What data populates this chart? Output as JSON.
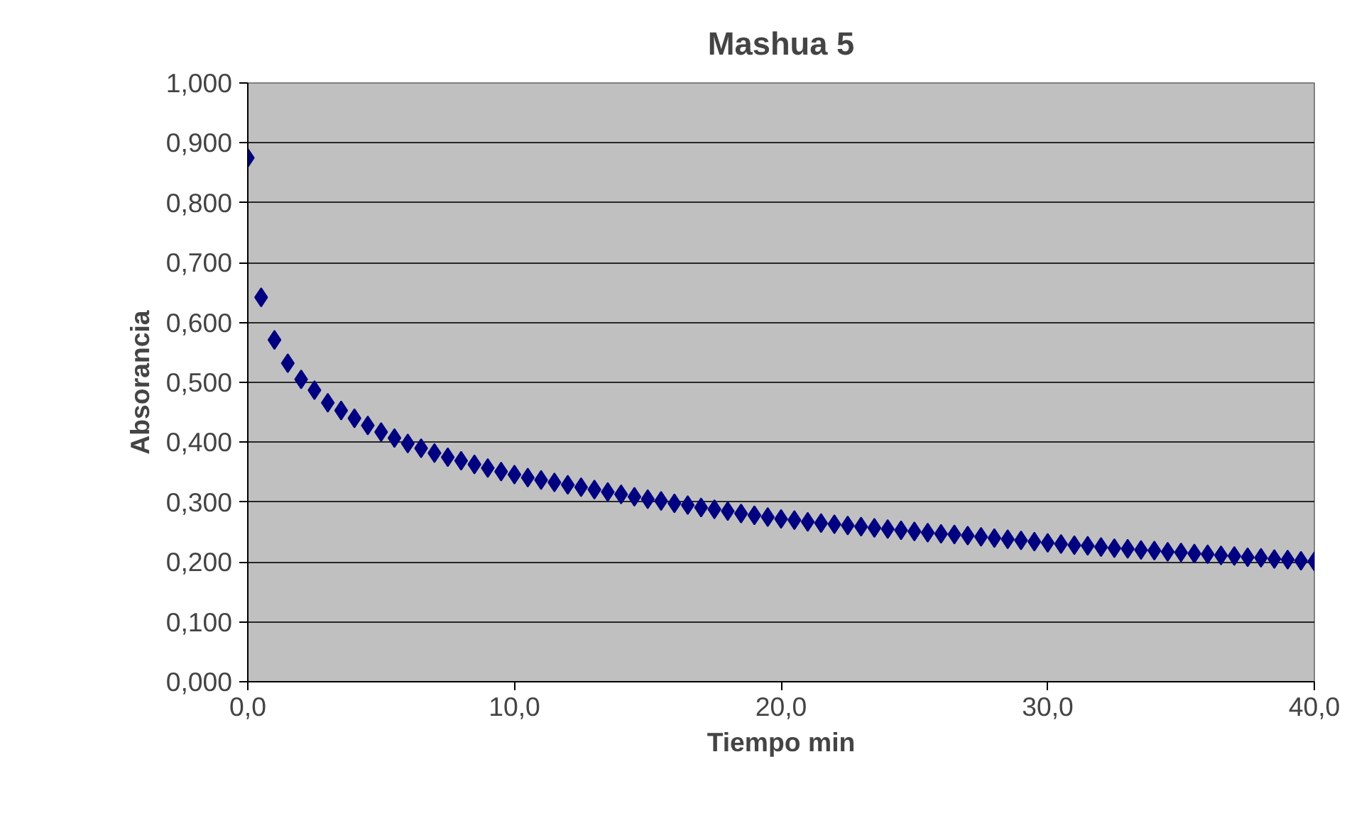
{
  "chart_data": {
    "type": "scatter",
    "title": "Mashua 5",
    "xlabel": "Tiempo min",
    "ylabel": "Absorancia",
    "x": [
      0,
      0.5,
      1,
      1.5,
      2,
      2.5,
      3,
      3.5,
      4,
      4.5,
      5,
      5.5,
      6,
      6.5,
      7,
      7.5,
      8,
      8.5,
      9,
      9.5,
      10,
      10.5,
      11,
      11.5,
      12,
      12.5,
      13,
      13.5,
      14,
      14.5,
      15,
      15.5,
      16,
      16.5,
      17,
      17.5,
      18,
      18.5,
      19,
      19.5,
      20,
      20.5,
      21,
      21.5,
      22,
      22.5,
      23,
      23.5,
      24,
      24.5,
      25,
      25.5,
      26,
      26.5,
      27,
      27.5,
      28,
      28.5,
      29,
      29.5,
      30,
      30.5,
      31,
      31.5,
      32,
      32.5,
      33,
      33.5,
      34,
      34.5,
      35,
      35.5,
      36,
      36.5,
      37,
      37.5,
      38,
      38.5,
      39,
      39.5,
      40
    ],
    "series": [
      {
        "color": "#000080",
        "values": [
          0.875,
          0.642,
          0.571,
          0.532,
          0.505,
          0.487,
          0.466,
          0.453,
          0.44,
          0.428,
          0.417,
          0.407,
          0.398,
          0.39,
          0.382,
          0.375,
          0.369,
          0.363,
          0.357,
          0.351,
          0.346,
          0.341,
          0.337,
          0.333,
          0.329,
          0.325,
          0.321,
          0.317,
          0.313,
          0.309,
          0.305,
          0.302,
          0.298,
          0.295,
          0.291,
          0.288,
          0.285,
          0.281,
          0.278,
          0.275,
          0.272,
          0.27,
          0.267,
          0.265,
          0.263,
          0.261,
          0.259,
          0.257,
          0.255,
          0.253,
          0.251,
          0.249,
          0.247,
          0.246,
          0.244,
          0.242,
          0.24,
          0.238,
          0.236,
          0.234,
          0.232,
          0.23,
          0.228,
          0.227,
          0.225,
          0.223,
          0.222,
          0.22,
          0.219,
          0.217,
          0.216,
          0.214,
          0.213,
          0.211,
          0.21,
          0.208,
          0.207,
          0.205,
          0.204,
          0.202,
          0.201
        ]
      }
    ],
    "marker": "diamond",
    "grid": "y",
    "xlim": [
      0,
      40
    ],
    "xticks": [
      {
        "value": 0,
        "label": "0,0"
      },
      {
        "value": 10,
        "label": "10,0"
      },
      {
        "value": 20,
        "label": "20,0"
      },
      {
        "value": 30,
        "label": "30,0"
      },
      {
        "value": 40,
        "label": "40,0"
      }
    ],
    "ylim": [
      0,
      1
    ],
    "yticks": [
      {
        "value": 0,
        "label": "0,000"
      },
      {
        "value": 0.1,
        "label": "0,100"
      },
      {
        "value": 0.2,
        "label": "0,200"
      },
      {
        "value": 0.3,
        "label": "0,300"
      },
      {
        "value": 0.4,
        "label": "0,400"
      },
      {
        "value": 0.5,
        "label": "0,500"
      },
      {
        "value": 0.6,
        "label": "0,600"
      },
      {
        "value": 0.7,
        "label": "0,700"
      },
      {
        "value": 0.8,
        "label": "0,800"
      },
      {
        "value": 0.9,
        "label": "0,900"
      },
      {
        "value": 1,
        "label": "1,000"
      }
    ]
  }
}
